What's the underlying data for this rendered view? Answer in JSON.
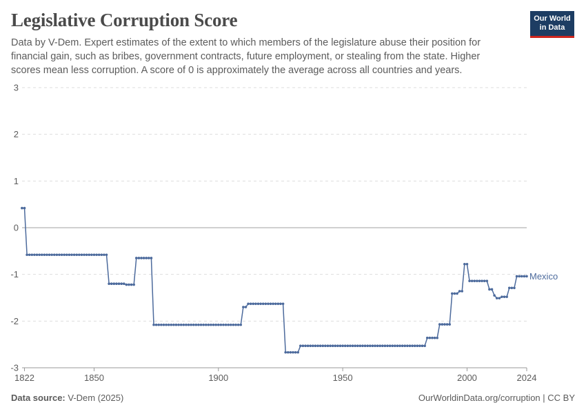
{
  "header": {
    "title": "Legislative Corruption Score",
    "subtitle": "Data by V-Dem. Expert estimates of the extent to which members of the legislature abuse their position for financial gain, such as bribes, government contracts, future employment, or stealing from the state. Higher scores mean less corruption. A score of 0 is approximately the average across all countries and years."
  },
  "logo": {
    "line1": "Our World",
    "line2": "in Data"
  },
  "footer": {
    "source_label": "Data source:",
    "source_value": "V-Dem (2025)",
    "link": "OurWorldinData.org/corruption | CC BY"
  },
  "colors": {
    "series": "#4c6a9c",
    "grid": "#dddddd",
    "zero": "#a1a1a1",
    "axis": "#5b5b5b",
    "logo_bg": "#1d3d63",
    "logo_accent": "#ce261e"
  },
  "chart_data": {
    "type": "line",
    "title": "Legislative Corruption Score",
    "xlabel": "",
    "ylabel": "",
    "xlim": [
      1822,
      2024
    ],
    "ylim": [
      -3,
      3
    ],
    "x_ticks": [
      "1822",
      "1850",
      "1900",
      "1950",
      "2000",
      "2024"
    ],
    "x_tick_values": [
      1822,
      1850,
      1900,
      1950,
      2000,
      2024
    ],
    "y_ticks": [
      "3",
      "2",
      "1",
      "0",
      "-1",
      "-2",
      "-3"
    ],
    "y_tick_values": [
      3,
      2,
      1,
      0,
      -1,
      -2,
      -3
    ],
    "series": [
      {
        "name": "Mexico",
        "segments": [
          {
            "from": 1821,
            "to": 1822,
            "value": 0.42
          },
          {
            "from": 1823,
            "to": 1855,
            "value": -0.58
          },
          {
            "from": 1856,
            "to": 1862,
            "value": -1.2
          },
          {
            "from": 1863,
            "to": 1866,
            "value": -1.22
          },
          {
            "from": 1867,
            "to": 1873,
            "value": -0.65
          },
          {
            "from": 1874,
            "to": 1909,
            "value": -2.08
          },
          {
            "from": 1910,
            "to": 1911,
            "value": -1.7
          },
          {
            "from": 1912,
            "to": 1926,
            "value": -1.63
          },
          {
            "from": 1927,
            "to": 1932,
            "value": -2.67
          },
          {
            "from": 1933,
            "to": 1983,
            "value": -2.53
          },
          {
            "from": 1984,
            "to": 1988,
            "value": -2.36
          },
          {
            "from": 1989,
            "to": 1993,
            "value": -2.07
          },
          {
            "from": 1994,
            "to": 1996,
            "value": -1.41
          },
          {
            "from": 1997,
            "to": 1998,
            "value": -1.36
          },
          {
            "from": 1999,
            "to": 2000,
            "value": -0.78
          },
          {
            "from": 2001,
            "to": 2008,
            "value": -1.14
          },
          {
            "from": 2009,
            "to": 2010,
            "value": -1.32
          },
          {
            "from": 2011,
            "to": 2011,
            "value": -1.45
          },
          {
            "from": 2012,
            "to": 2013,
            "value": -1.51
          },
          {
            "from": 2014,
            "to": 2016,
            "value": -1.48
          },
          {
            "from": 2017,
            "to": 2019,
            "value": -1.29
          },
          {
            "from": 2020,
            "to": 2024,
            "value": -1.04
          }
        ]
      }
    ],
    "legend": "end-of-line label, right"
  }
}
